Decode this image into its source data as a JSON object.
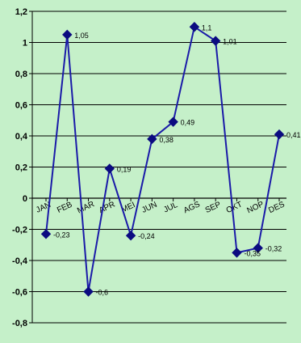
{
  "chart_data": {
    "type": "line",
    "title": "",
    "xlabel": "",
    "ylabel": "",
    "categories": [
      "JAN",
      "FEB",
      "MAR",
      "APR",
      "MEI",
      "JUN",
      "JUL",
      "AGS",
      "SEP",
      "OKT",
      "NOP",
      "DES"
    ],
    "series": [
      {
        "values": [
          -0.23,
          1.05,
          -0.6,
          0.19,
          -0.24,
          0.38,
          0.49,
          1.1,
          1.01,
          -0.35,
          -0.32,
          0.41
        ],
        "labels": [
          "-0,23",
          "1,05",
          "-0,6",
          "0,19",
          "-0,24",
          "0,38",
          "0,49",
          "1,1",
          "1,01",
          "-0,35",
          "-0,32",
          "0,41"
        ]
      }
    ],
    "ylim": [
      -0.8,
      1.2
    ],
    "yticks": [
      1.2,
      1.0,
      0.8,
      0.6,
      0.4,
      0.2,
      0.0,
      -0.2,
      -0.4,
      -0.6,
      -0.8
    ],
    "ytick_labels": [
      "1,2",
      "1",
      "0,8",
      "0,6",
      "0,4",
      "0,2",
      "0",
      "-0,2",
      "-0,4",
      "-0,6",
      "-0,8"
    ],
    "grid": true,
    "legend": "none",
    "colors": {
      "background": "#c5f0c9",
      "line": "#1a1aa8",
      "marker": "#0b0b80",
      "grid": "#000000"
    }
  }
}
